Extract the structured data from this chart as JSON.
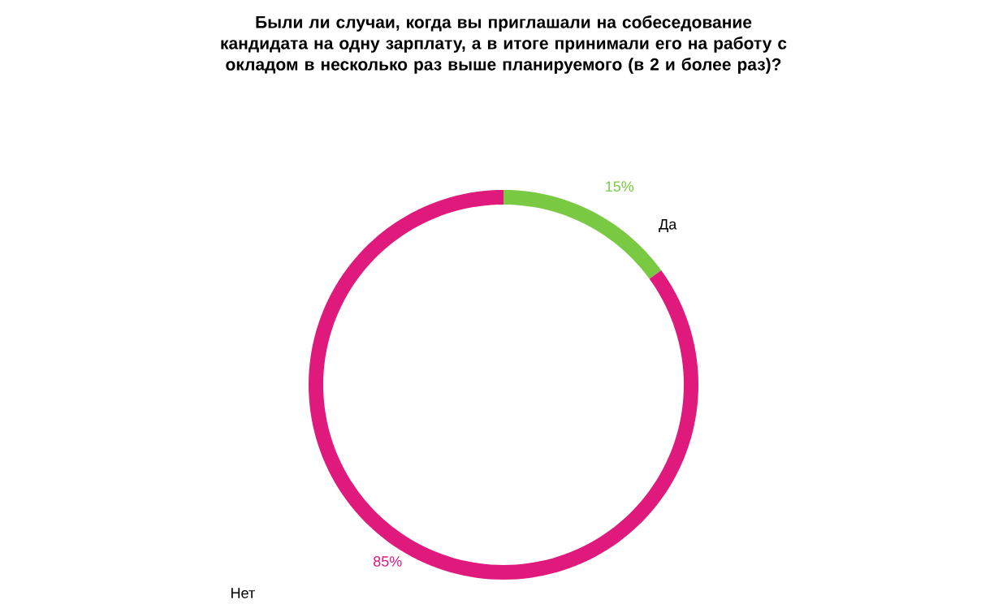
{
  "chart_data": {
    "type": "donut",
    "title": "Были ли случаи, когда вы приглашали на собеседование кандидата на одну зарплату, а в итоге принимали его на работу с окладом в несколько раз выше планируемого (в 2 и более раз)?",
    "categories": [
      "Да",
      "Нет"
    ],
    "values": [
      15,
      85
    ],
    "colors": [
      "#7ac943",
      "#e0197d"
    ],
    "value_labels": [
      "15%",
      "85%"
    ],
    "legend": false
  }
}
